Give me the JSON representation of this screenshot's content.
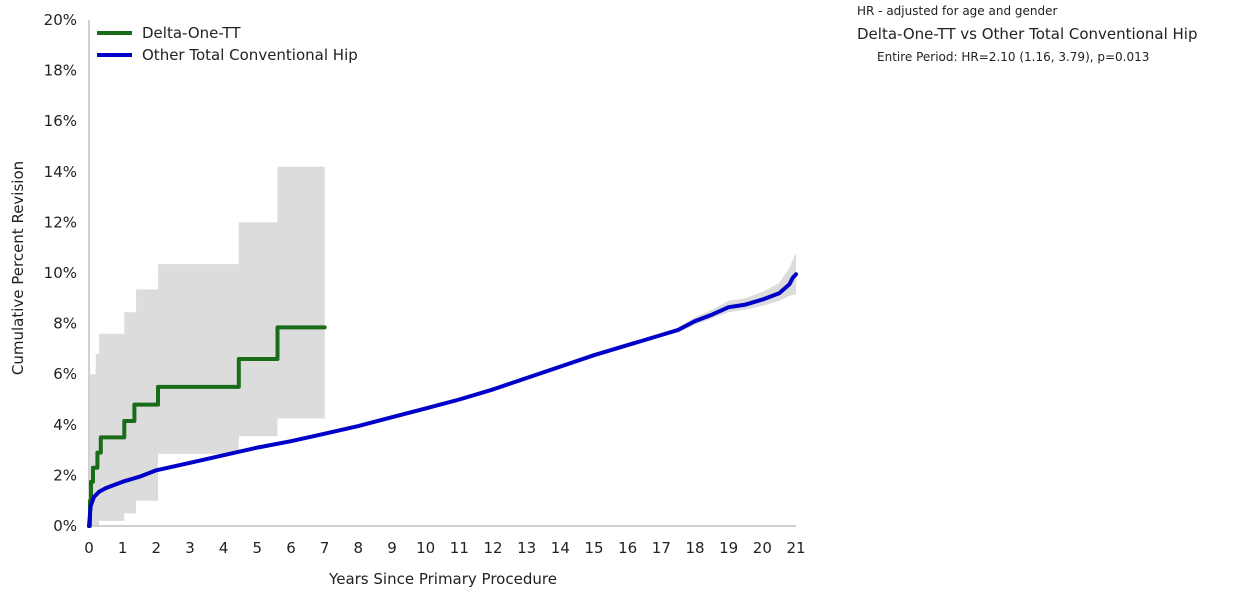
{
  "chart_data": {
    "type": "line",
    "xlabel": "Years Since Primary Procedure",
    "ylabel": "Cumulative Percent Revision",
    "xlim": [
      0,
      21
    ],
    "ylim": [
      0,
      20
    ],
    "x_ticks": [
      0,
      1,
      2,
      3,
      4,
      5,
      6,
      7,
      8,
      9,
      10,
      11,
      12,
      13,
      14,
      15,
      16,
      17,
      18,
      19,
      20,
      21
    ],
    "y_ticks": [
      0,
      2,
      4,
      6,
      8,
      10,
      12,
      14,
      16,
      18,
      20
    ],
    "y_tick_suffix": "%",
    "legend_position": "top-left",
    "grid": false,
    "series": [
      {
        "name": "Delta-One-TT",
        "color": "#1a6b1a",
        "line_style": "step",
        "points": [
          [
            0.0,
            0.0
          ],
          [
            0.03,
            1.0
          ],
          [
            0.06,
            1.75
          ],
          [
            0.12,
            2.3
          ],
          [
            0.25,
            2.9
          ],
          [
            0.35,
            3.5
          ],
          [
            1.05,
            4.15
          ],
          [
            1.35,
            4.8
          ],
          [
            2.05,
            5.5
          ],
          [
            4.45,
            6.6
          ],
          [
            5.6,
            7.85
          ],
          [
            7.0,
            7.85
          ]
        ],
        "ci_band": [
          [
            0.0,
            0.0,
            0.0
          ],
          [
            0.03,
            0.0,
            6.0
          ],
          [
            0.2,
            0.0,
            6.8
          ],
          [
            0.3,
            0.2,
            7.6
          ],
          [
            1.05,
            0.5,
            8.45
          ],
          [
            1.4,
            1.0,
            9.35
          ],
          [
            2.05,
            2.85,
            10.35
          ],
          [
            4.45,
            3.55,
            12.0
          ],
          [
            5.6,
            4.25,
            14.2
          ],
          [
            7.0,
            4.25,
            14.2
          ]
        ],
        "band_color": "#dcdcdc"
      },
      {
        "name": "Other Total Conventional Hip",
        "color": "#0000c8",
        "line_style": "smooth",
        "points": [
          [
            0.0,
            0.0
          ],
          [
            0.05,
            0.8
          ],
          [
            0.15,
            1.15
          ],
          [
            0.3,
            1.35
          ],
          [
            0.5,
            1.5
          ],
          [
            1,
            1.75
          ],
          [
            1.5,
            1.95
          ],
          [
            2,
            2.2
          ],
          [
            3,
            2.5
          ],
          [
            4,
            2.8
          ],
          [
            5,
            3.1
          ],
          [
            6,
            3.35
          ],
          [
            7,
            3.65
          ],
          [
            8,
            3.95
          ],
          [
            9,
            4.3
          ],
          [
            10,
            4.65
          ],
          [
            11,
            5.0
          ],
          [
            12,
            5.4
          ],
          [
            13,
            5.85
          ],
          [
            14,
            6.3
          ],
          [
            15,
            6.75
          ],
          [
            16,
            7.15
          ],
          [
            17,
            7.55
          ],
          [
            17.5,
            7.75
          ],
          [
            18,
            8.1
          ],
          [
            18.5,
            8.35
          ],
          [
            19,
            8.65
          ],
          [
            19.5,
            8.75
          ],
          [
            20,
            8.95
          ],
          [
            20.5,
            9.2
          ],
          [
            20.8,
            9.55
          ],
          [
            20.9,
            9.8
          ],
          [
            21,
            9.95
          ]
        ],
        "ci_band": [
          [
            17.5,
            7.65,
            7.85
          ],
          [
            18,
            7.95,
            8.25
          ],
          [
            18.5,
            8.2,
            8.55
          ],
          [
            19,
            8.45,
            8.9
          ],
          [
            19.5,
            8.55,
            9.0
          ],
          [
            20,
            8.7,
            9.25
          ],
          [
            20.5,
            8.9,
            9.6
          ],
          [
            20.8,
            9.1,
            10.2
          ],
          [
            21,
            9.15,
            10.8
          ]
        ],
        "band_color": "#dcdcdc"
      }
    ]
  },
  "notes": {
    "basis": "HR - adjusted for age and gender",
    "comparison": "Delta-One-TT vs Other Total Conventional Hip",
    "period_result": "Entire Period: HR=2.10 (1.16, 3.79), p=0.013"
  }
}
